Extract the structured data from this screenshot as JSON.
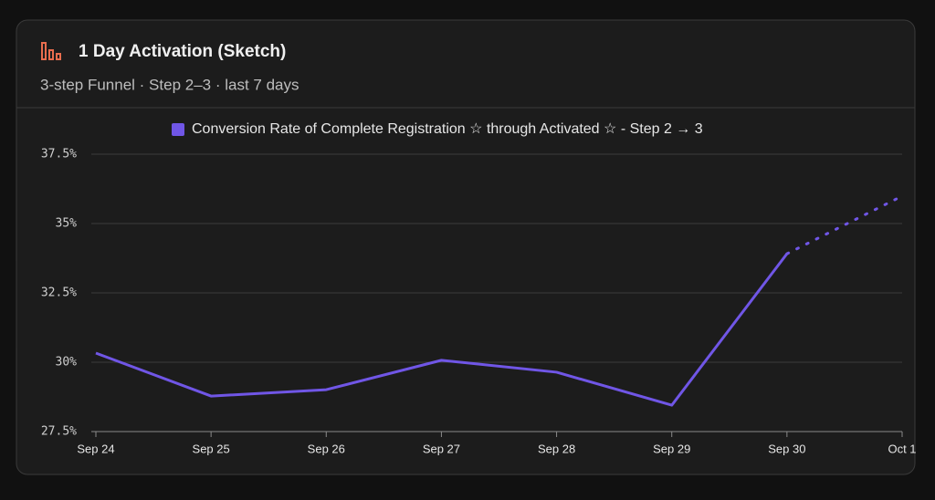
{
  "chart_data": {
    "type": "line",
    "title": "1 Day Activation (Sketch)",
    "subtitle": "3-step Funnel · Step 2–3 · last 7 days",
    "categories": [
      "Sep 24",
      "Sep 25",
      "Sep 26",
      "Sep 27",
      "Sep 28",
      "Sep 29",
      "Sep 30",
      "Oct 1"
    ],
    "series": [
      {
        "name": "Conversion Rate of Complete Registration ☆ through Activated ☆ - Step 2 → 3",
        "color": "#7056e6",
        "values": [
          30.33,
          28.78,
          29.01,
          30.07,
          29.64,
          28.45,
          33.91,
          35.99
        ]
      }
    ],
    "ylim": [
      27.5,
      37.5
    ],
    "yticks": [
      {
        "value": 27.5,
        "label": "27.5%"
      },
      {
        "value": 30,
        "label": "30%"
      },
      {
        "value": 32.5,
        "label": "32.5%"
      },
      {
        "value": 35,
        "label": "35%"
      },
      {
        "value": 37.5,
        "label": "37.5%"
      }
    ],
    "grid": true,
    "dotted_last_segment": true
  }
}
